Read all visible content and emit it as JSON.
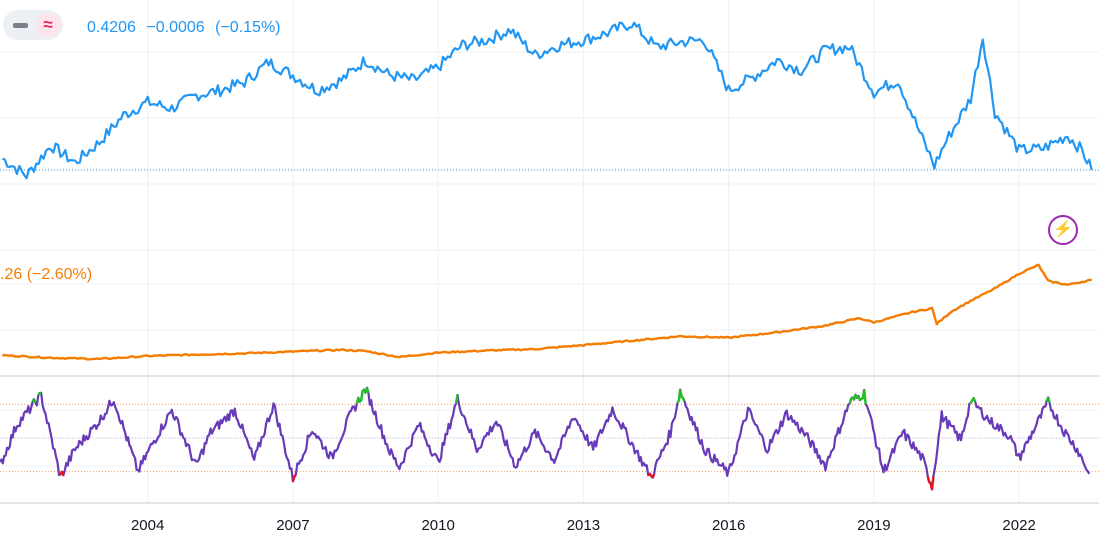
{
  "legend": {
    "ratio_value": "0.4206",
    "ratio_change": "−0.0006",
    "ratio_change_pct": "(−0.15%)",
    "index_text": ".26 (−2.60%)"
  },
  "icons": {
    "toggle_dash": "minus-icon",
    "toggle_approx": "approx-icon",
    "flash": "lightning-icon"
  },
  "icon_glyphs": {
    "approx": "≈",
    "flash": "⚡"
  },
  "colors": {
    "ratio": "#2196f3",
    "index": "#f57c00",
    "oscillator": "#673ab7",
    "overbought": "#1fc41f",
    "oversold": "#e8141c",
    "band": "#f39c5a",
    "flash": "#9c27b0"
  },
  "chart_data": [
    {
      "type": "line",
      "series": [
        {
          "values_x": [
            2001.0,
            2001.5,
            2002.0,
            2002.5,
            2003.0,
            2003.5,
            2004.0,
            2004.5,
            2005.0,
            2005.5,
            2006.0,
            2006.5,
            2007.0,
            2007.5,
            2008.0,
            2008.5,
            2009.0,
            2009.5,
            2010.0,
            2010.5,
            2011.0,
            2011.5,
            2012.0,
            2012.5,
            2013.0,
            2013.5,
            2014.0,
            2014.5,
            2015.0,
            2015.5,
            2016.0,
            2016.5,
            2017.0,
            2017.5,
            2018.0,
            2018.5,
            2019.0,
            2019.5,
            2020.0,
            2020.25,
            2020.5,
            2021.0,
            2021.25,
            2021.5,
            2022.0,
            2022.5,
            2023.0,
            2023.3,
            2023.5
          ],
          "values": [
            0.432,
            0.415,
            0.445,
            0.428,
            0.448,
            0.475,
            0.488,
            0.482,
            0.495,
            0.5,
            0.508,
            0.528,
            0.515,
            0.5,
            0.51,
            0.53,
            0.515,
            0.51,
            0.523,
            0.545,
            0.55,
            0.56,
            0.535,
            0.545,
            0.55,
            0.557,
            0.567,
            0.543,
            0.548,
            0.55,
            0.5,
            0.513,
            0.53,
            0.52,
            0.54,
            0.543,
            0.498,
            0.51,
            0.452,
            0.425,
            0.45,
            0.492,
            0.553,
            0.478,
            0.44,
            0.442,
            0.455,
            0.44,
            0.4206
          ]
        }
      ],
      "last_value": 0.4206
    },
    {
      "type": "line",
      "series": [
        {
          "values_x": [
            2001.0,
            2002.0,
            2003.0,
            2004.0,
            2005.0,
            2006.0,
            2007.0,
            2008.0,
            2008.5,
            2009.2,
            2010.0,
            2011.0,
            2012.0,
            2013.0,
            2014.0,
            2015.0,
            2016.0,
            2017.0,
            2018.0,
            2018.7,
            2019.0,
            2019.8,
            2020.2,
            2020.3,
            2020.6,
            2021.0,
            2021.5,
            2022.0,
            2022.4,
            2022.6,
            2023.0,
            2023.5
          ],
          "values": [
            8.5,
            7.5,
            7.0,
            8.2,
            8.8,
            9.3,
            10.0,
            10.7,
            10.2,
            7.8,
            9.6,
            10.4,
            11.0,
            12.6,
            14.4,
            16.2,
            15.6,
            17.8,
            20.5,
            23.5,
            21.8,
            26.0,
            27.5,
            21.2,
            26.2,
            30.5,
            35.5,
            41.5,
            45.0,
            38.5,
            37.0,
            39.0
          ]
        }
      ]
    },
    {
      "type": "line",
      "ylim": [
        0,
        100
      ],
      "bands": [
        80,
        50,
        20
      ],
      "series": [
        {
          "values_x": [
            2000.95,
            2001.3,
            2001.8,
            2002.2,
            2002.5,
            2003.0,
            2003.3,
            2003.8,
            2004.1,
            2004.5,
            2005.0,
            2005.3,
            2005.8,
            2006.2,
            2006.6,
            2007.0,
            2007.4,
            2007.8,
            2008.2,
            2008.5,
            2009.0,
            2009.2,
            2009.6,
            2010.0,
            2010.4,
            2010.8,
            2011.2,
            2011.6,
            2012.0,
            2012.4,
            2012.8,
            2013.2,
            2013.6,
            2014.0,
            2014.4,
            2014.8,
            2015.0,
            2015.5,
            2016.0,
            2016.4,
            2016.8,
            2017.2,
            2017.6,
            2018.0,
            2018.5,
            2018.8,
            2019.2,
            2019.6,
            2020.0,
            2020.2,
            2020.4,
            2020.8,
            2021.0,
            2021.4,
            2021.8,
            2022.0,
            2022.6,
            2022.9,
            2023.2,
            2023.45
          ],
          "values": [
            25,
            62,
            88,
            15,
            40,
            65,
            85,
            20,
            45,
            75,
            25,
            55,
            75,
            30,
            80,
            14,
            58,
            32,
            72,
            94,
            38,
            24,
            62,
            28,
            85,
            40,
            65,
            25,
            55,
            30,
            70,
            40,
            76,
            45,
            15,
            55,
            92,
            40,
            18,
            75,
            40,
            72,
            52,
            25,
            82,
            90,
            20,
            55,
            32,
            7,
            70,
            48,
            84,
            65,
            52,
            32,
            82,
            58,
            40,
            18
          ]
        }
      ],
      "overbought_above": 80,
      "oversold_below": 20
    }
  ],
  "x_axis": {
    "ticks": [
      "2004",
      "2007",
      "2010",
      "2013",
      "2016",
      "2019",
      "2022"
    ]
  }
}
